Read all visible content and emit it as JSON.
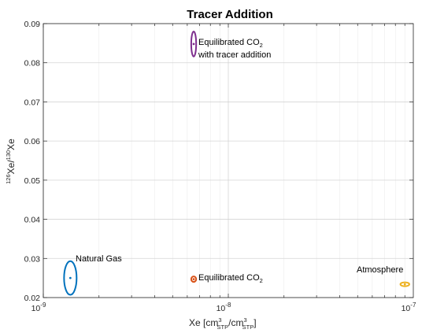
{
  "chart_data": {
    "type": "scatter",
    "title": "Tracer Addition",
    "xlabel": "Xe [cm³STP/cm³STP]",
    "ylabel": "126Xe/130Xe",
    "xscale": "log",
    "xlim": [
      1e-09,
      1e-07
    ],
    "ylim": [
      0.02,
      0.09
    ],
    "x_ticks": [
      {
        "value": 1e-09,
        "base": "10",
        "exp": "-9"
      },
      {
        "value": 1e-08,
        "base": "10",
        "exp": "-8"
      },
      {
        "value": 1e-07,
        "base": "10",
        "exp": "-7"
      }
    ],
    "y_ticks": [
      "0.02",
      "0.03",
      "0.04",
      "0.05",
      "0.06",
      "0.07",
      "0.08",
      "0.09"
    ],
    "grid": true,
    "points": [
      {
        "name": "Natural Gas",
        "x": 1.4e-09,
        "y": 0.025,
        "x_err": [
          1.3e-09,
          1.52e-09
        ],
        "y_err": 0.0043,
        "color": "#0072BD"
      },
      {
        "name": "Equilibrated CO2",
        "x": 6.5e-09,
        "y": 0.0247,
        "x_err": [
          6.3e-09,
          6.7e-09
        ],
        "y_err": 0.0007,
        "color": "#D95319"
      },
      {
        "name": "Equilibrated CO2 with tracer addition",
        "x": 6.5e-09,
        "y": 0.0848,
        "x_err": [
          6.3e-09,
          6.7e-09
        ],
        "y_err": 0.0032,
        "color": "#7E2F8E"
      },
      {
        "name": "Atmosphere",
        "x": 9e-08,
        "y": 0.0234,
        "x_err": [
          8.5e-08,
          9.5e-08
        ],
        "y_err": 0.0005,
        "color": "#EDB120"
      }
    ]
  },
  "annotations": {
    "natural_gas": "Natural Gas",
    "eq_co2_prefix": "Equilibrated CO",
    "eq_co2_sub": "2",
    "eq_tracer_line1_prefix": "Equilibrated CO",
    "eq_tracer_line1_sub": "2",
    "eq_tracer_line2": "with tracer addition",
    "atmosphere": "Atmosphere"
  },
  "axis_label_parts": {
    "x_main": "Xe [cm",
    "x_sup1": "3",
    "x_sub1": "STP",
    "x_mid": "/cm",
    "x_sup2": "3",
    "x_sub2": "STP",
    "x_end": "]",
    "y_sup1": "126",
    "y_mid": "Xe/",
    "y_sup2": "130",
    "y_end": "Xe"
  }
}
